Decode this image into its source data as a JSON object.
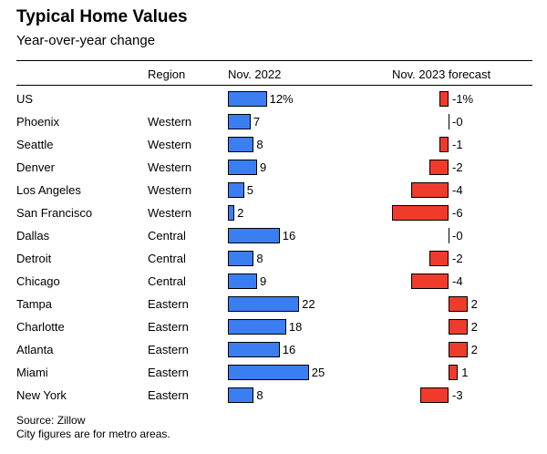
{
  "title": "Typical Home Values",
  "subtitle": "Year-over-year change",
  "headers": {
    "region": "Region",
    "nov2022": "Nov. 2022",
    "forecast": "Nov. 2023 forecast"
  },
  "footer": {
    "source": "Source: Zillow",
    "note": "City figures are for metro areas."
  },
  "chart_data": {
    "type": "bar",
    "title": "Typical Home Values",
    "subtitle": "Year-over-year change",
    "columns": [
      "Region",
      "Nov. 2022",
      "Nov. 2023 forecast"
    ],
    "rows": [
      {
        "name": "US",
        "region": "",
        "nov2022": 12,
        "nov2022_label": "12%",
        "forecast": -1,
        "forecast_label": "-1%"
      },
      {
        "name": "Phoenix",
        "region": "Western",
        "nov2022": 7,
        "nov2022_label": "7",
        "forecast": 0,
        "forecast_label": "-0"
      },
      {
        "name": "Seattle",
        "region": "Western",
        "nov2022": 8,
        "nov2022_label": "8",
        "forecast": -1,
        "forecast_label": "-1"
      },
      {
        "name": "Denver",
        "region": "Western",
        "nov2022": 9,
        "nov2022_label": "9",
        "forecast": -2,
        "forecast_label": "-2"
      },
      {
        "name": "Los Angeles",
        "region": "Western",
        "nov2022": 5,
        "nov2022_label": "5",
        "forecast": -4,
        "forecast_label": "-4"
      },
      {
        "name": "San Francisco",
        "region": "Western",
        "nov2022": 2,
        "nov2022_label": "2",
        "forecast": -6,
        "forecast_label": "-6"
      },
      {
        "name": "Dallas",
        "region": "Central",
        "nov2022": 16,
        "nov2022_label": "16",
        "forecast": 0,
        "forecast_label": "-0"
      },
      {
        "name": "Detroit",
        "region": "Central",
        "nov2022": 8,
        "nov2022_label": "8",
        "forecast": -2,
        "forecast_label": "-2"
      },
      {
        "name": "Chicago",
        "region": "Central",
        "nov2022": 9,
        "nov2022_label": "9",
        "forecast": -4,
        "forecast_label": "-4"
      },
      {
        "name": "Tampa",
        "region": "Eastern",
        "nov2022": 22,
        "nov2022_label": "22",
        "forecast": 2,
        "forecast_label": "2"
      },
      {
        "name": "Charlotte",
        "region": "Eastern",
        "nov2022": 18,
        "nov2022_label": "18",
        "forecast": 2,
        "forecast_label": "2"
      },
      {
        "name": "Atlanta",
        "region": "Eastern",
        "nov2022": 16,
        "nov2022_label": "16",
        "forecast": 2,
        "forecast_label": "2"
      },
      {
        "name": "Miami",
        "region": "Eastern",
        "nov2022": 25,
        "nov2022_label": "25",
        "forecast": 1,
        "forecast_label": "1"
      },
      {
        "name": "New York",
        "region": "Eastern",
        "nov2022": 8,
        "nov2022_label": "8",
        "forecast": -3,
        "forecast_label": "-3"
      }
    ],
    "colors": {
      "nov2022": "#3b7ef2",
      "forecast": "#ef3b2c"
    }
  }
}
